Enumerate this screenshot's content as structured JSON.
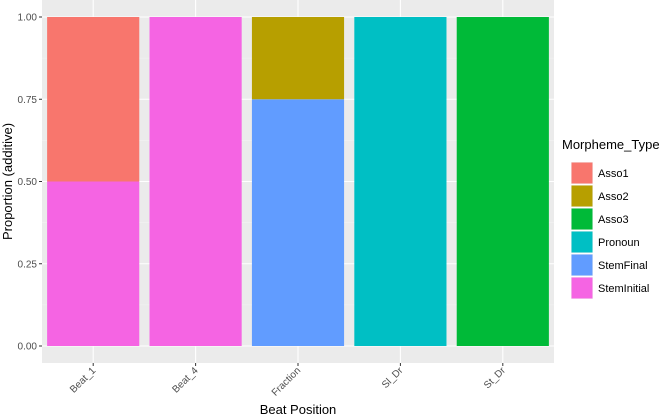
{
  "chart_data": {
    "type": "bar",
    "stacked": true,
    "categories": [
      "Beat_1",
      "Beat_4",
      "Fraction",
      "Sl_Dr",
      "St_Dr"
    ],
    "xlabel": "Beat Position",
    "ylabel": "Proportion (additive)",
    "ylim": [
      0,
      1
    ],
    "yticks": [
      "0.00",
      "0.25",
      "0.50",
      "0.75",
      "1.00"
    ],
    "grid": true,
    "legend_position": "right",
    "legend_title": "Morpheme_Type",
    "series": [
      {
        "name": "StemInitial",
        "color": "#F564E3",
        "values": [
          0.5,
          1.0,
          0,
          0,
          0
        ]
      },
      {
        "name": "StemFinal",
        "color": "#619CFF",
        "values": [
          0,
          0,
          0.75,
          0,
          0
        ]
      },
      {
        "name": "Pronoun",
        "color": "#00BFC4",
        "values": [
          0,
          0,
          0,
          1.0,
          0
        ]
      },
      {
        "name": "Asso3",
        "color": "#00BA38",
        "values": [
          0,
          0,
          0,
          0,
          1.0
        ]
      },
      {
        "name": "Asso2",
        "color": "#B79F00",
        "values": [
          0,
          0,
          0.25,
          0,
          0
        ]
      },
      {
        "name": "Asso1",
        "color": "#F8766D",
        "values": [
          0.5,
          0,
          0,
          0,
          0
        ]
      }
    ],
    "legend_order": [
      "Asso1",
      "Asso2",
      "Asso3",
      "Pronoun",
      "StemFinal",
      "StemInitial"
    ]
  }
}
